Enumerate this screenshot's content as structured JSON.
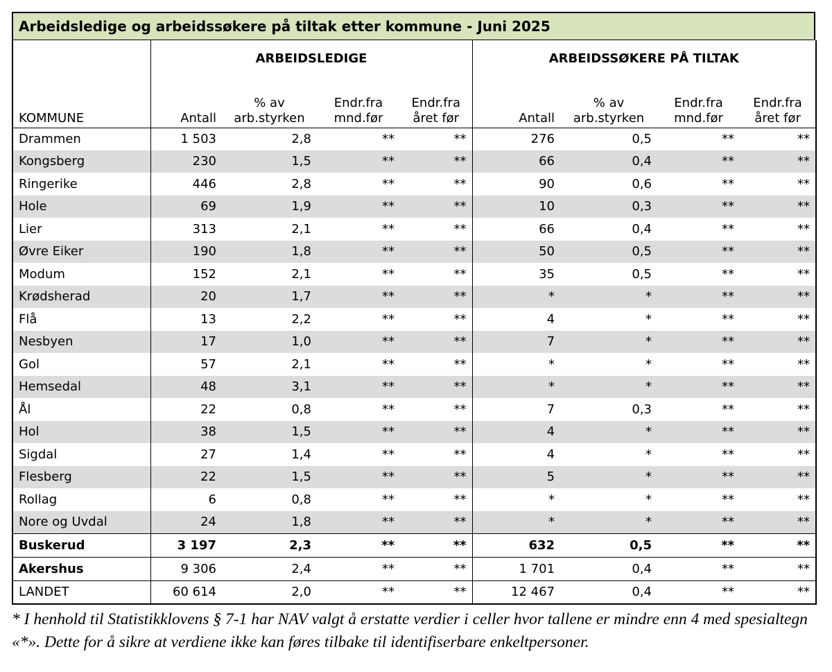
{
  "title": "Arbeidsledige og arbeidssøkere på tiltak etter kommune - Juni 2025",
  "group_headers": {
    "left": "ARBEIDSLEDIGE",
    "right": "ARBEIDSSØKERE PÅ TILTAK"
  },
  "column_headers": {
    "kommune": "KOMMUNE",
    "antall": "Antall",
    "pct_line1": "% av",
    "pct_line2": "arb.styrken",
    "endr_mnd_line1": "Endr.fra",
    "endr_mnd_line2": "mnd.før",
    "endr_aar_line1": "Endr.fra",
    "endr_aar_line2": "året før"
  },
  "rows": [
    [
      "Drammen",
      "1 503",
      "2,8",
      "**",
      "**",
      "276",
      "0,5",
      "**",
      "**"
    ],
    [
      "Kongsberg",
      "230",
      "1,5",
      "**",
      "**",
      "66",
      "0,4",
      "**",
      "**"
    ],
    [
      "Ringerike",
      "446",
      "2,8",
      "**",
      "**",
      "90",
      "0,6",
      "**",
      "**"
    ],
    [
      "Hole",
      "69",
      "1,9",
      "**",
      "**",
      "10",
      "0,3",
      "**",
      "**"
    ],
    [
      "Lier",
      "313",
      "2,1",
      "**",
      "**",
      "66",
      "0,4",
      "**",
      "**"
    ],
    [
      "Øvre Eiker",
      "190",
      "1,8",
      "**",
      "**",
      "50",
      "0,5",
      "**",
      "**"
    ],
    [
      "Modum",
      "152",
      "2,1",
      "**",
      "**",
      "35",
      "0,5",
      "**",
      "**"
    ],
    [
      "Krødsherad",
      "20",
      "1,7",
      "**",
      "**",
      "*",
      "*",
      "**",
      "**"
    ],
    [
      "Flå",
      "13",
      "2,2",
      "**",
      "**",
      "4",
      "*",
      "**",
      "**"
    ],
    [
      "Nesbyen",
      "17",
      "1,0",
      "**",
      "**",
      "7",
      "*",
      "**",
      "**"
    ],
    [
      "Gol",
      "57",
      "2,1",
      "**",
      "**",
      "*",
      "*",
      "**",
      "**"
    ],
    [
      "Hemsedal",
      "48",
      "3,1",
      "**",
      "**",
      "*",
      "*",
      "**",
      "**"
    ],
    [
      "Ål",
      "22",
      "0,8",
      "**",
      "**",
      "7",
      "0,3",
      "**",
      "**"
    ],
    [
      "Hol",
      "38",
      "1,5",
      "**",
      "**",
      "4",
      "*",
      "**",
      "**"
    ],
    [
      "Sigdal",
      "27",
      "1,4",
      "**",
      "**",
      "4",
      "*",
      "**",
      "**"
    ],
    [
      "Flesberg",
      "22",
      "1,5",
      "**",
      "**",
      "5",
      "*",
      "**",
      "**"
    ],
    [
      "Rollag",
      "6",
      "0,8",
      "**",
      "**",
      "*",
      "*",
      "**",
      "**"
    ],
    [
      "Nore og Uvdal",
      "24",
      "1,8",
      "**",
      "**",
      "*",
      "*",
      "**",
      "**"
    ]
  ],
  "totals": {
    "buskerud": [
      "Buskerud",
      "3 197",
      "2,3",
      "**",
      "**",
      "632",
      "0,5",
      "**",
      "**"
    ],
    "akershus": [
      "Akershus",
      "9 306",
      "2,4",
      "**",
      "**",
      "1 701",
      "0,4",
      "**",
      "**"
    ],
    "landet": [
      "LANDET",
      "60 614",
      "2,0",
      "**",
      "**",
      "12 467",
      "0,4",
      "**",
      "**"
    ]
  },
  "footnote": "* I henhold til Statistikklovens § 7-1 har NAV valgt å erstatte verdier i celler hvor tallene er mindre enn 4 med spesialtegn «*». Dette for å sikre at verdiene ikke kan føres tilbake til identifiserbare enkeltpersoner.",
  "colors": {
    "title_background": "#d8e4bc",
    "row_shade": "#dcdcdc"
  }
}
